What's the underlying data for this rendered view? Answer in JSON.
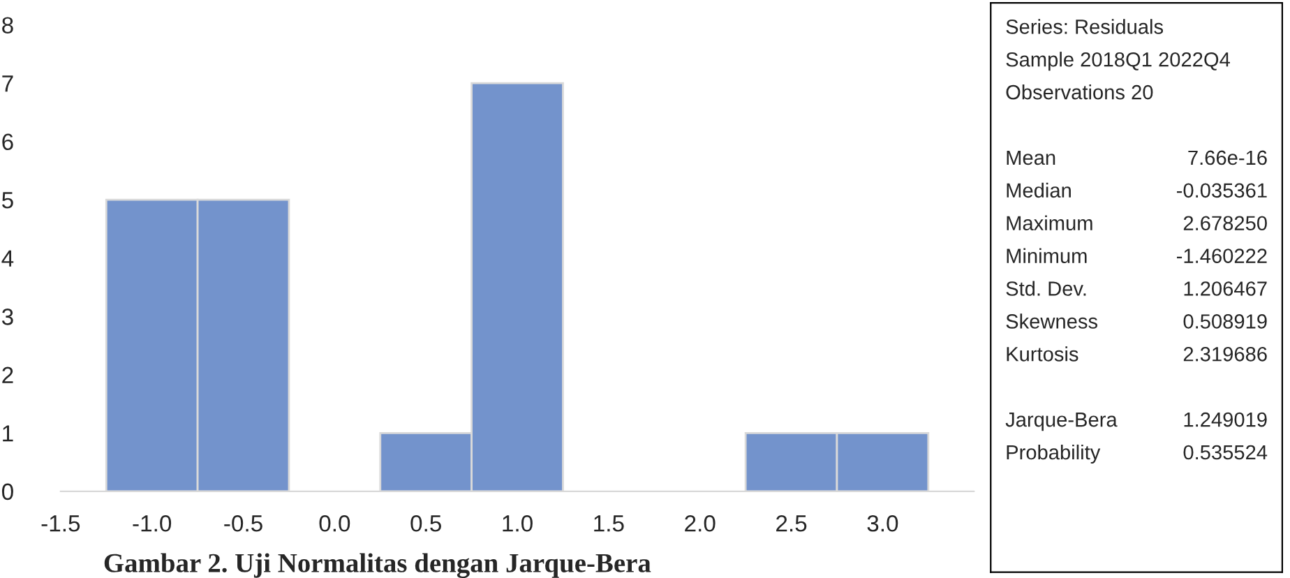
{
  "chart_data": [
    {
      "type": "histogram",
      "bins": [
        -1.25,
        -0.75,
        -0.25,
        0.25,
        0.75,
        1.25,
        1.75,
        2.25,
        2.75,
        3.25
      ],
      "values": [
        5,
        5,
        0,
        1,
        7,
        0,
        0,
        1,
        1
      ],
      "color": "#7393cc",
      "xlim": [
        -1.5,
        3.5
      ],
      "xticks": [
        {
          "value": -1.5,
          "label": "-1.5"
        },
        {
          "value": -1.0,
          "label": "-1.0"
        },
        {
          "value": -0.5,
          "label": "-0.5"
        },
        {
          "value": 0.0,
          "label": "0.0"
        },
        {
          "value": 0.5,
          "label": "0.5"
        },
        {
          "value": 1.0,
          "label": "1.0"
        },
        {
          "value": 1.5,
          "label": "1.5"
        },
        {
          "value": 2.0,
          "label": "2.0"
        },
        {
          "value": 2.5,
          "label": "2.5"
        },
        {
          "value": 3.0,
          "label": "3.0"
        }
      ],
      "ylim": [
        0,
        8
      ],
      "yticks": [
        0,
        1,
        2,
        3,
        4,
        5,
        6,
        7,
        8
      ],
      "grid": false,
      "annotations": [
        "Gambar 2. Uji Normalitas dengan Jarque-Bera"
      ]
    },
    {
      "type": "other",
      "annotations": [
        "Series: Residuals",
        "Sample 2018Q1 2022Q4",
        "Observations 20"
      ],
      "categories": [
        "Mean",
        "Median",
        "Maximum",
        "Minimum",
        "Std. Dev.",
        "Skewness",
        "Kurtosis",
        null,
        "Jarque-Bera",
        "Probability"
      ],
      "values": [
        7.66e-16,
        -0.035361,
        2.67825,
        -1.460222,
        1.206467,
        0.508919,
        2.319686,
        null,
        1.249019,
        0.535524
      ],
      "value_labels": [
        "7.66e-16",
        "-0.035361",
        "2.678250",
        "-1.460222",
        "1.206467",
        "0.508919",
        "2.319686",
        null,
        "1.249019",
        "0.535524"
      ]
    }
  ]
}
